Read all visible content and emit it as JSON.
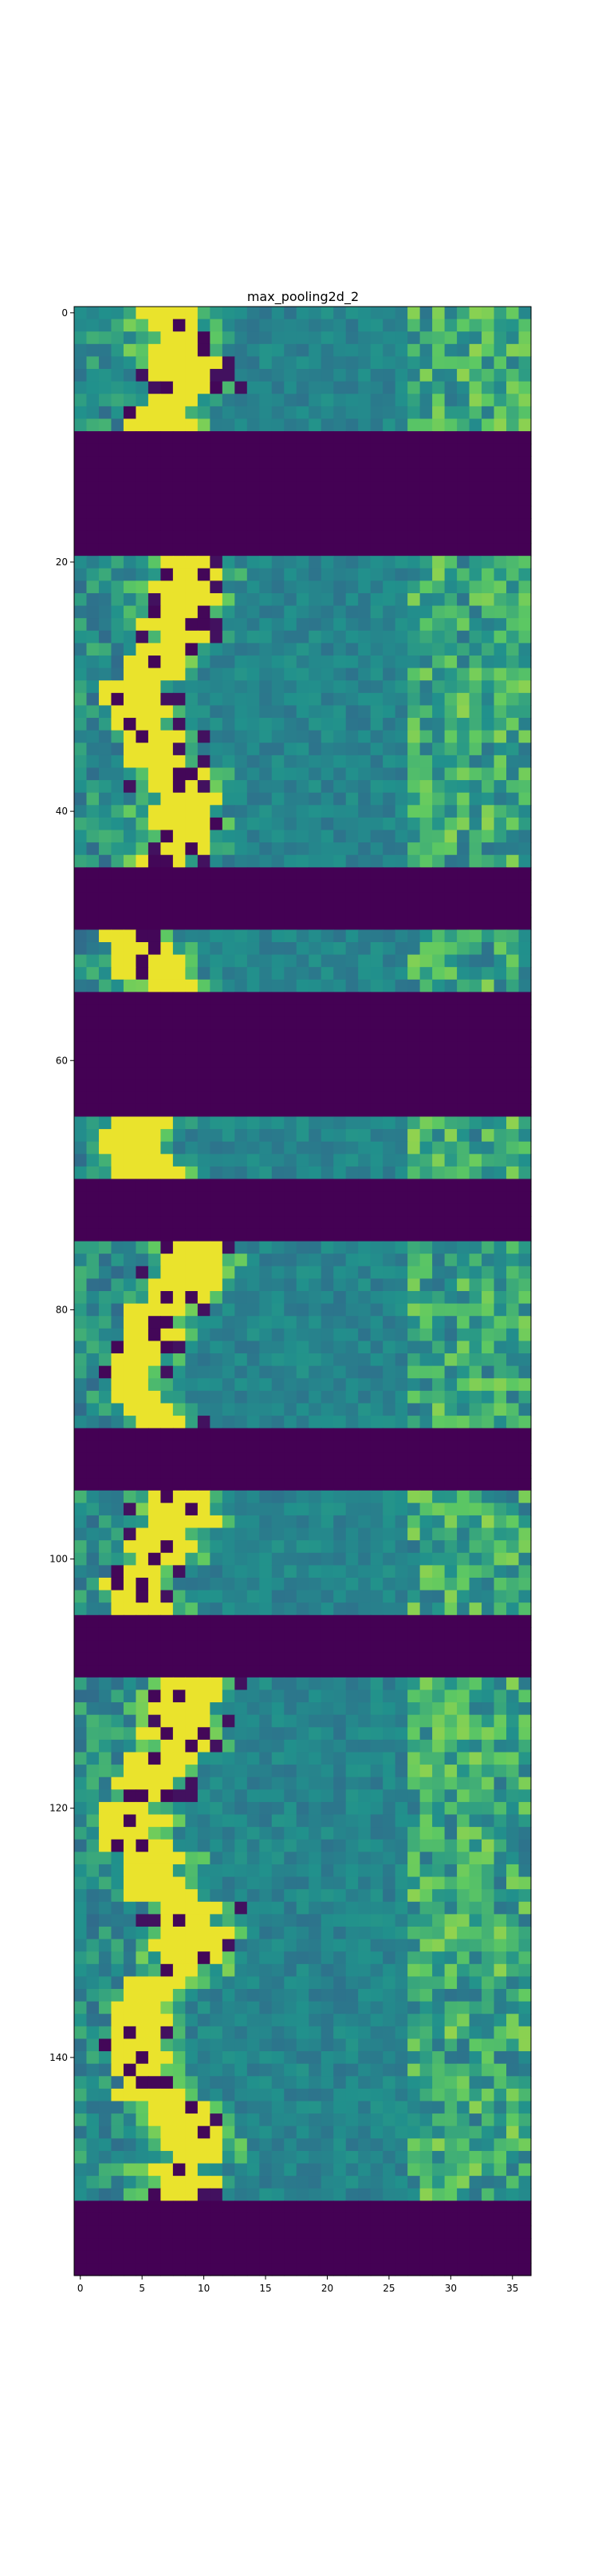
{
  "chart_data": {
    "type": "heatmap",
    "title": "max_pooling2d_2",
    "xlabel": "",
    "ylabel": "",
    "x_range": [
      -0.5,
      36.5
    ],
    "y_range": [
      157.5,
      -0.5
    ],
    "x_ticks": [
      0,
      5,
      10,
      15,
      20,
      25,
      30,
      35
    ],
    "y_ticks": [
      0,
      20,
      40,
      60,
      80,
      100,
      120,
      140
    ],
    "colormap": "viridis",
    "colors": {
      "low": "#440154",
      "low_mid": "#3b528b",
      "mid": "#21918c",
      "high_mid": "#5ec962",
      "high": "#fde725"
    },
    "grid": false,
    "row_bands": [
      {
        "rows": [
          0,
          9
        ],
        "kind": "active"
      },
      {
        "rows": [
          10,
          19
        ],
        "kind": "zero"
      },
      {
        "rows": [
          20,
          44
        ],
        "kind": "active"
      },
      {
        "rows": [
          45,
          49
        ],
        "kind": "zero"
      },
      {
        "rows": [
          50,
          54
        ],
        "kind": "active"
      },
      {
        "rows": [
          55,
          64
        ],
        "kind": "zero"
      },
      {
        "rows": [
          65,
          69
        ],
        "kind": "active"
      },
      {
        "rows": [
          70,
          74
        ],
        "kind": "zero"
      },
      {
        "rows": [
          75,
          89
        ],
        "kind": "active"
      },
      {
        "rows": [
          90,
          94
        ],
        "kind": "zero"
      },
      {
        "rows": [
          95,
          104
        ],
        "kind": "active"
      },
      {
        "rows": [
          105,
          109
        ],
        "kind": "zero"
      },
      {
        "rows": [
          110,
          151
        ],
        "kind": "active"
      },
      {
        "rows": [
          152,
          156
        ],
        "kind": "zero"
      }
    ]
  }
}
